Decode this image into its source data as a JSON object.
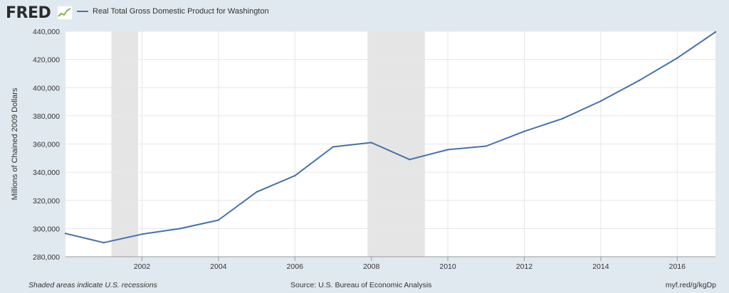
{
  "header": {
    "logo_text": "FRED",
    "logo_mark_icon": "sparkline-chart-icon"
  },
  "footer": {
    "recession_note": "Shaded areas indicate U.S. recessions",
    "source": "Source: U.S. Bureau of Economic Analysis",
    "short_url": "myf.red/g/kgDp"
  },
  "colors": {
    "line": "#4572a7",
    "recession_shade": "#e5e5e5",
    "background": "#e1e9f0",
    "plot_bg": "#ffffff",
    "grid": "#e6e6e6"
  },
  "chart_data": {
    "type": "line",
    "title": "",
    "xlabel": "",
    "ylabel": "Millions of Chained 2009 Dollars",
    "xlim": [
      2000,
      2017
    ],
    "ylim": [
      280000,
      440000
    ],
    "yticks": [
      280000,
      300000,
      320000,
      340000,
      360000,
      380000,
      400000,
      420000,
      440000
    ],
    "ytick_labels": [
      "280,000",
      "300,000",
      "320,000",
      "340,000",
      "360,000",
      "380,000",
      "400,000",
      "420,000",
      "440,000"
    ],
    "xticks": [
      2002,
      2004,
      2006,
      2008,
      2010,
      2012,
      2014,
      2016
    ],
    "xtick_labels": [
      "2002",
      "2004",
      "2006",
      "2008",
      "2010",
      "2012",
      "2014",
      "2016"
    ],
    "grid": true,
    "legend": "top-left",
    "recessions": [
      [
        2001.2,
        2001.9
      ],
      [
        2007.9,
        2009.4
      ]
    ],
    "series": [
      {
        "name": "Real Total Gross Domestic Product for Washington",
        "x": [
          2000,
          2001,
          2002,
          2003,
          2004,
          2005,
          2006,
          2007,
          2008,
          2009,
          2010,
          2011,
          2012,
          2013,
          2014,
          2015,
          2016,
          2017
        ],
        "y": [
          296500,
          290000,
          296000,
          300000,
          306000,
          326000,
          337500,
          358000,
          361000,
          349000,
          356000,
          358500,
          369000,
          378000,
          390500,
          405000,
          421000,
          439500
        ]
      }
    ]
  }
}
